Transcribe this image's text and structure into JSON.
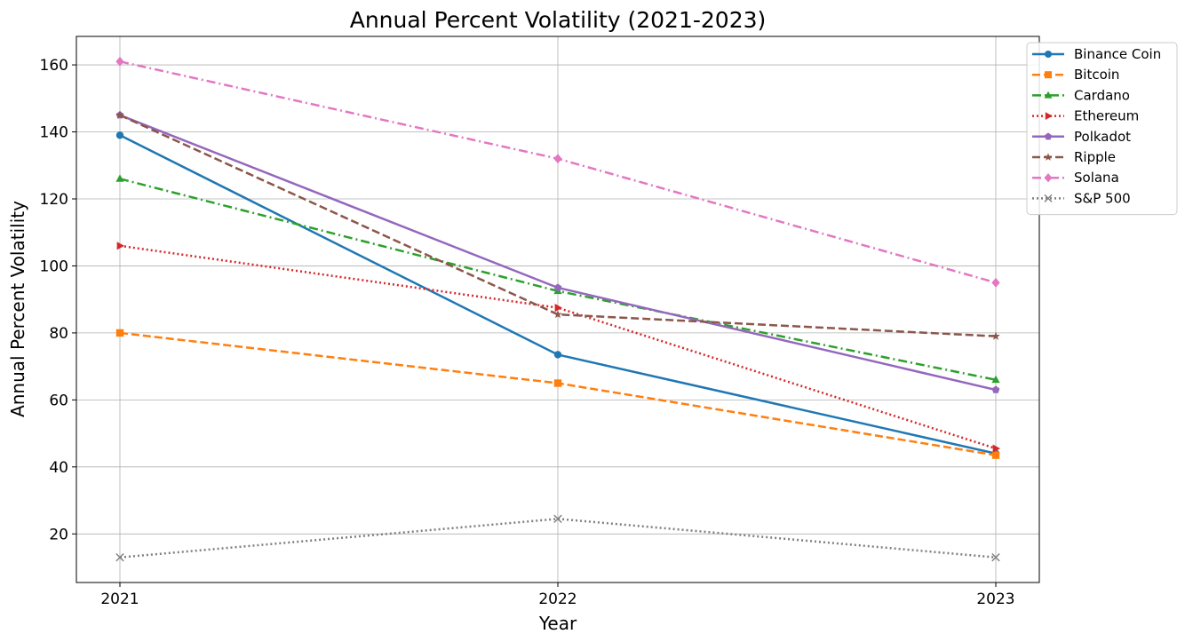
{
  "chart_data": {
    "type": "line",
    "title": "Annual Percent Volatility (2021-2023)",
    "xlabel": "Year",
    "ylabel": "Annual Percent Volatility",
    "categories": [
      "2021",
      "2022",
      "2023"
    ],
    "ylim": [
      5.5,
      168.5
    ],
    "yticks": [
      20,
      40,
      60,
      80,
      100,
      120,
      140,
      160
    ],
    "grid": true,
    "legend_position": "top-right",
    "series": [
      {
        "name": "Binance Coin",
        "values": [
          139,
          73.5,
          44
        ],
        "color": "#1f77b4",
        "dash": "solid",
        "marker": "circle"
      },
      {
        "name": "Bitcoin",
        "values": [
          80,
          65,
          43.5
        ],
        "color": "#ff7f0e",
        "dash": "dashed",
        "marker": "square"
      },
      {
        "name": "Cardano",
        "values": [
          126,
          92.5,
          66
        ],
        "color": "#2ca02c",
        "dash": "dashdot",
        "marker": "triangle-up"
      },
      {
        "name": "Ethereum",
        "values": [
          106,
          87.5,
          45.5
        ],
        "color": "#d62728",
        "dash": "dotted",
        "marker": "triangle-right"
      },
      {
        "name": "Polkadot",
        "values": [
          145,
          93.5,
          63
        ],
        "color": "#9467bd",
        "dash": "solid",
        "marker": "pentagon"
      },
      {
        "name": "Ripple",
        "values": [
          145,
          85.5,
          79
        ],
        "color": "#8c564b",
        "dash": "dashed",
        "marker": "star"
      },
      {
        "name": "Solana",
        "values": [
          161,
          132,
          95
        ],
        "color": "#e377c2",
        "dash": "dashdot",
        "marker": "diamond"
      },
      {
        "name": "S&P 500",
        "values": [
          13,
          24.5,
          13
        ],
        "color": "#7f7f7f",
        "dash": "dotted",
        "marker": "x"
      }
    ]
  }
}
